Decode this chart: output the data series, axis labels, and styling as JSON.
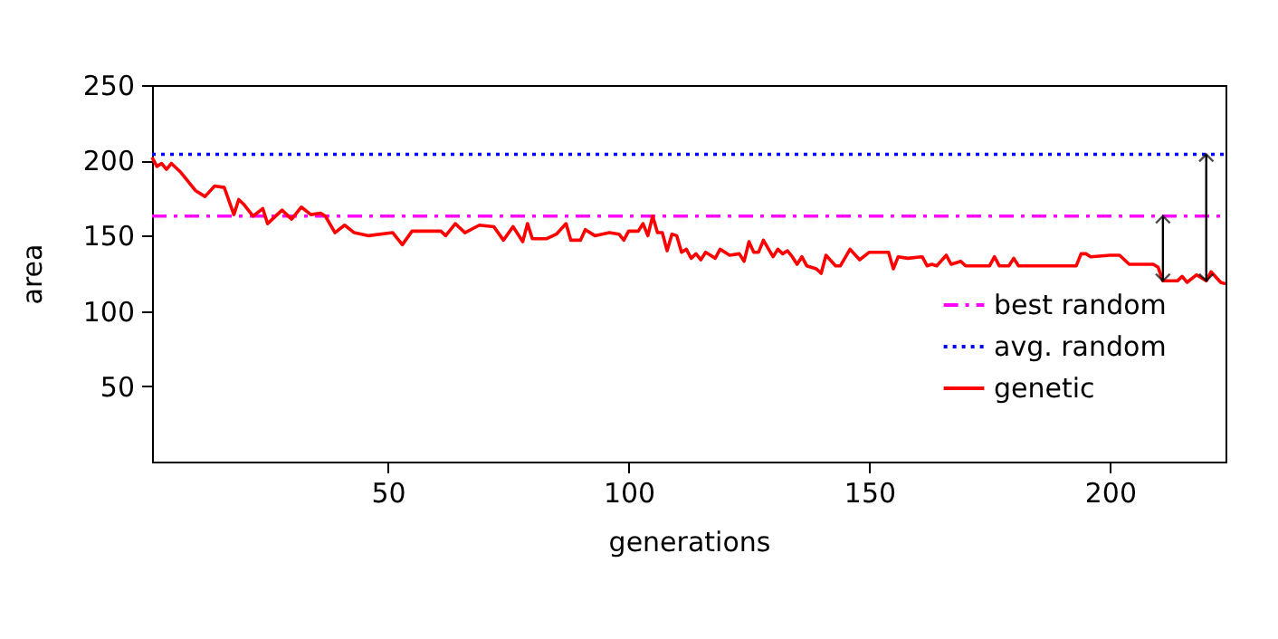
{
  "chart_data": {
    "type": "line",
    "xlabel": "generations",
    "ylabel": "area",
    "xlim": [
      1,
      224
    ],
    "ylim": [
      0,
      250
    ],
    "xticks": [
      50,
      100,
      150,
      200
    ],
    "yticks": [
      50,
      100,
      150,
      200,
      250
    ],
    "grid": false,
    "legend": "bottom right",
    "marker": "none",
    "series": [
      {
        "name": "best random",
        "color": "#ff00ff",
        "line_style": "dashed",
        "x": [
          1,
          224
        ],
        "values": [
          163,
          163
        ]
      },
      {
        "name": "avg. random",
        "color": "#0000ff",
        "line_style": "dotted",
        "x": [
          1,
          224
        ],
        "values": [
          204,
          204
        ]
      },
      {
        "name": "genetic",
        "color": "#ff0000",
        "line_style": "solid",
        "x": [
          1,
          2,
          3,
          4,
          5,
          7,
          10,
          12,
          14,
          16,
          18,
          19,
          20,
          22,
          24,
          25,
          28,
          30,
          32,
          34,
          36,
          37,
          39,
          41,
          43,
          46,
          51,
          53,
          55,
          61,
          62,
          64,
          66,
          69,
          72,
          74,
          76,
          78,
          79,
          80,
          83,
          85,
          87,
          88,
          90,
          91,
          93,
          96,
          98,
          99,
          100,
          102,
          103,
          104,
          105,
          106,
          107,
          108,
          109,
          110,
          111,
          112,
          113,
          114,
          115,
          116,
          117,
          118,
          119,
          121,
          123,
          124,
          125,
          126,
          127,
          128,
          130,
          131,
          132,
          133,
          134,
          135,
          136,
          137,
          139,
          140,
          141,
          143,
          144,
          146,
          148,
          150,
          154,
          155,
          156,
          158,
          161,
          162,
          163,
          164,
          166,
          167,
          169,
          170,
          175,
          176,
          177,
          179,
          180,
          181,
          193,
          194,
          195,
          196,
          200,
          202,
          204,
          209,
          210,
          211,
          214,
          215,
          216,
          218,
          220,
          221,
          223,
          224
        ],
        "values": [
          202,
          196,
          198,
          194,
          198,
          192,
          180,
          176,
          183,
          182,
          164,
          174,
          171,
          163,
          168,
          158,
          167,
          161,
          169,
          164,
          165,
          163,
          152,
          157,
          152,
          150,
          152,
          144,
          153,
          153,
          150,
          158,
          152,
          157,
          156,
          147,
          156,
          146,
          158,
          148,
          148,
          151,
          158,
          147,
          147,
          154,
          150,
          152,
          151,
          147,
          153,
          153,
          158,
          150,
          163,
          152,
          152,
          140,
          151,
          150,
          139,
          141,
          135,
          138,
          134,
          139,
          137,
          135,
          141,
          137,
          138,
          133,
          146,
          139,
          139,
          147,
          136,
          141,
          138,
          140,
          136,
          131,
          136,
          130,
          128,
          125,
          137,
          130,
          130,
          141,
          134,
          139,
          139,
          128,
          136,
          135,
          136,
          130,
          131,
          130,
          137,
          131,
          133,
          130,
          130,
          136,
          130,
          130,
          135,
          130,
          130,
          138,
          138,
          136,
          137,
          137,
          131,
          131,
          129,
          120,
          120,
          123,
          119,
          124,
          120,
          126,
          119,
          118
        ]
      }
    ]
  }
}
